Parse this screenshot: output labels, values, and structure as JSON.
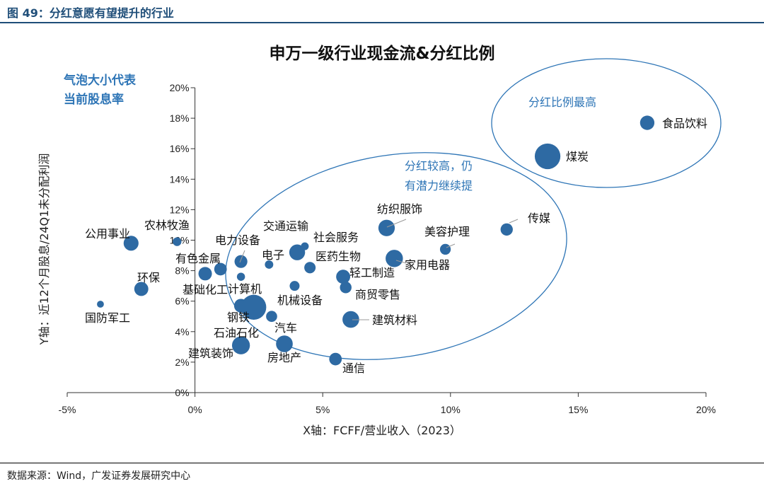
{
  "figure": {
    "title": "图 49：分红意愿有望提升的行业",
    "source": "数据来源：Wind，广发证券发展研究中心"
  },
  "chart_data": {
    "type": "scatter",
    "title": "申万一级行业现金流&分红比例",
    "xlabel": "X轴：FCFF/营业收入（2023）",
    "ylabel": "Y轴：近12个月股息/24Q1未分配利润",
    "xlim": [
      -5,
      20
    ],
    "ylim": [
      0,
      20
    ],
    "x_ticks": [
      "-5%",
      "0%",
      "5%",
      "10%",
      "15%",
      "20%"
    ],
    "y_ticks": [
      "0%",
      "2%",
      "4%",
      "6%",
      "8%",
      "10%",
      "12%",
      "14%",
      "16%",
      "18%",
      "20%"
    ],
    "grid": false,
    "bubble_size_note": "气泡大小代表当前股息率",
    "annotations": [
      "分红比例最高",
      "分红较高，仍有潜力继续提"
    ],
    "color": "#2e6aa3",
    "points": [
      {
        "name": "食品饮料",
        "x": 17.7,
        "y": 17.7,
        "size": 3.4
      },
      {
        "name": "煤炭",
        "x": 13.8,
        "y": 15.5,
        "size": 7.2
      },
      {
        "name": "传媒",
        "x": 12.2,
        "y": 10.7,
        "size": 2.7
      },
      {
        "name": "美容护理",
        "x": 9.8,
        "y": 9.4,
        "size": 2.2
      },
      {
        "name": "纺织服饰",
        "x": 7.5,
        "y": 10.8,
        "size": 4.1
      },
      {
        "name": "家用电器",
        "x": 7.8,
        "y": 8.8,
        "size": 4.4
      },
      {
        "name": "轻工制造",
        "x": 5.8,
        "y": 7.6,
        "size": 3.3
      },
      {
        "name": "商贸零售",
        "x": 5.9,
        "y": 6.9,
        "size": 2.5
      },
      {
        "name": "建筑材料",
        "x": 6.1,
        "y": 4.8,
        "size": 4.2
      },
      {
        "name": "医药生物",
        "x": 4.5,
        "y": 8.2,
        "size": 2.4
      },
      {
        "name": "社会服务",
        "x": 4.3,
        "y": 9.6,
        "size": 1.2
      },
      {
        "name": "交通运输",
        "x": 4.0,
        "y": 9.2,
        "size": 3.9
      },
      {
        "name": "电子",
        "x": 2.9,
        "y": 8.4,
        "size": 1.4
      },
      {
        "name": "计算机",
        "x": 3.9,
        "y": 7.0,
        "size": 1.9
      },
      {
        "name": "机械设备",
        "x": 1.8,
        "y": 7.6,
        "size": 1.3
      },
      {
        "name": "电力设备",
        "x": 1.8,
        "y": 8.6,
        "size": 2.9
      },
      {
        "name": "有色金属",
        "x": 1.0,
        "y": 8.1,
        "size": 2.8
      },
      {
        "name": "基础化工",
        "x": 0.4,
        "y": 7.8,
        "size": 3.1
      },
      {
        "name": "钢铁",
        "x": 2.3,
        "y": 5.6,
        "size": 7.0
      },
      {
        "name": "石油石化",
        "x": 1.8,
        "y": 5.7,
        "size": 3.2
      },
      {
        "name": "汽车",
        "x": 3.0,
        "y": 5.0,
        "size": 2.3
      },
      {
        "name": "房地产",
        "x": 3.5,
        "y": 3.2,
        "size": 4.2
      },
      {
        "name": "建筑装饰",
        "x": 1.8,
        "y": 3.1,
        "size": 4.6
      },
      {
        "name": "通信",
        "x": 5.5,
        "y": 2.2,
        "size": 2.8
      },
      {
        "name": "公用事业",
        "x": -2.5,
        "y": 9.8,
        "size": 3.6
      },
      {
        "name": "农林牧渔",
        "x": -0.7,
        "y": 9.9,
        "size": 1.5
      },
      {
        "name": "环保",
        "x": -2.1,
        "y": 6.8,
        "size": 3.3
      },
      {
        "name": "国防军工",
        "x": -3.7,
        "y": 5.8,
        "size": 0.9
      }
    ]
  }
}
